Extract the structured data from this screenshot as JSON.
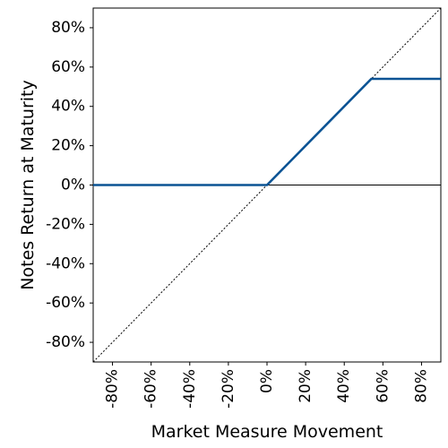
{
  "chart_data": {
    "type": "line",
    "xlabel": "Market Measure Movement",
    "ylabel": "Notes Return at Maturity",
    "xlim": [
      -90,
      90
    ],
    "ylim": [
      -90,
      90
    ],
    "x_ticks": [
      -80,
      -60,
      -40,
      -20,
      0,
      20,
      40,
      60,
      80
    ],
    "y_ticks": [
      80,
      60,
      40,
      20,
      0,
      -20,
      -40,
      -60,
      -80
    ],
    "x_tick_labels": [
      "-80%",
      "-60%",
      "-40%",
      "-20%",
      "0%",
      "20%",
      "40%",
      "60%",
      "80%"
    ],
    "y_tick_labels": [
      "80%",
      "60%",
      "40%",
      "20%",
      "0%",
      "-20%",
      "-40%",
      "-60%",
      "-80%"
    ],
    "grid": false,
    "series": [
      {
        "style": "solid",
        "color": "#0b5394",
        "x": [
          -90,
          0,
          54,
          90
        ],
        "y": [
          0,
          0,
          54,
          54
        ]
      },
      {
        "style": "dotted",
        "color": "#000000",
        "x": [
          -90,
          90
        ],
        "y": [
          -90,
          90
        ]
      }
    ],
    "reference_lines": [
      {
        "axis": "y",
        "value": 0,
        "color": "#000000"
      }
    ]
  }
}
